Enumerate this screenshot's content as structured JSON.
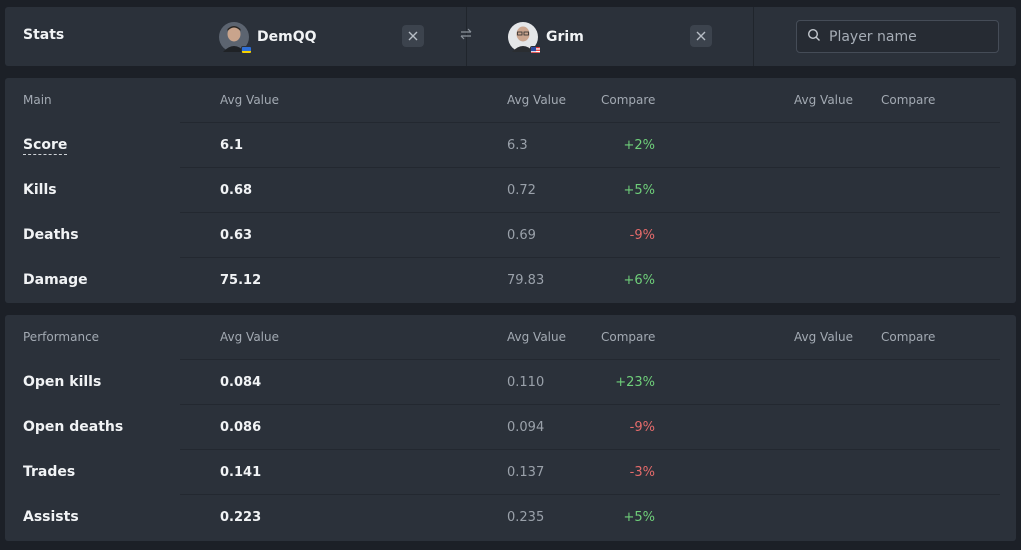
{
  "header": {
    "stats_label": "Stats",
    "player1": {
      "name": "DemQQ",
      "flag": "ua"
    },
    "player2": {
      "name": "Grim",
      "flag": "us"
    },
    "search": {
      "placeholder": "Player name",
      "value": ""
    }
  },
  "main": {
    "section": "Main",
    "col_avg1": "Avg Value",
    "col_avg2": "Avg Value",
    "col_cmp2": "Compare",
    "col_avg3": "Avg Value",
    "col_cmp3": "Compare",
    "rows": [
      {
        "label": "Score",
        "v1": "6.1",
        "v2": "6.3",
        "cmp": "+2%",
        "sign": "pos"
      },
      {
        "label": "Kills",
        "v1": "0.68",
        "v2": "0.72",
        "cmp": "+5%",
        "sign": "pos"
      },
      {
        "label": "Deaths",
        "v1": "0.63",
        "v2": "0.69",
        "cmp": "-9%",
        "sign": "neg"
      },
      {
        "label": "Damage",
        "v1": "75.12",
        "v2": "79.83",
        "cmp": "+6%",
        "sign": "pos"
      }
    ]
  },
  "performance": {
    "section": "Performance",
    "col_avg1": "Avg Value",
    "col_avg2": "Avg Value",
    "col_cmp2": "Compare",
    "col_avg3": "Avg Value",
    "col_cmp3": "Compare",
    "rows": [
      {
        "label": "Open kills",
        "v1": "0.084",
        "v2": "0.110",
        "cmp": "+23%",
        "sign": "pos"
      },
      {
        "label": "Open deaths",
        "v1": "0.086",
        "v2": "0.094",
        "cmp": "-9%",
        "sign": "neg"
      },
      {
        "label": "Trades",
        "v1": "0.141",
        "v2": "0.137",
        "cmp": "-3%",
        "sign": "neg"
      },
      {
        "label": "Assists",
        "v1": "0.223",
        "v2": "0.235",
        "cmp": "+5%",
        "sign": "pos"
      }
    ]
  },
  "colors": {
    "positive": "#6fcf7a",
    "negative": "#e56b6b",
    "panel": "#2b313a",
    "background": "#1c2027"
  },
  "icons": [
    "close-icon",
    "swap-icon",
    "search-icon"
  ]
}
